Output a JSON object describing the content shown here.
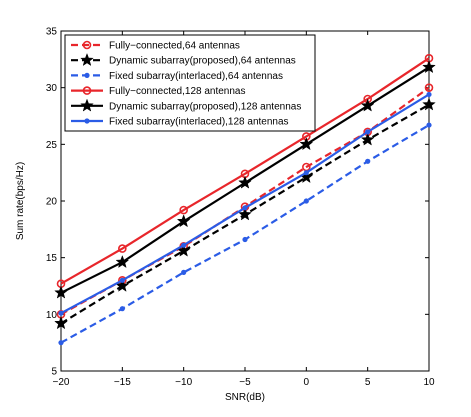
{
  "chart_data": {
    "type": "line",
    "xlabel": "SNR(dB)",
    "ylabel": "Sum rate(bps/Hz)",
    "xlim": [
      -20,
      10
    ],
    "ylim": [
      5,
      35
    ],
    "xticks": [
      -20,
      -15,
      -10,
      -5,
      0,
      5,
      10
    ],
    "yticks": [
      5,
      10,
      15,
      20,
      25,
      30,
      35
    ],
    "grid": false,
    "legend_position": "top-left",
    "x": [
      -20,
      -15,
      -10,
      -5,
      0,
      5,
      10
    ],
    "series": [
      {
        "name": "Fully−connected,64 antennas",
        "values": [
          10.0,
          13.0,
          16.0,
          19.5,
          23.0,
          26.1,
          30.0
        ],
        "color": "#e8262b",
        "dash": "dashed",
        "marker": "circle"
      },
      {
        "name": "Dynamic subarray(proposed),64 antennas",
        "values": [
          9.2,
          12.5,
          15.6,
          18.8,
          22.1,
          25.4,
          28.5
        ],
        "color": "#000000",
        "dash": "dashed",
        "marker": "star"
      },
      {
        "name": "Fixed subarray(interlaced),64 antennas",
        "values": [
          7.5,
          10.5,
          13.7,
          16.6,
          20.0,
          23.5,
          26.7
        ],
        "color": "#2b5ce6",
        "dash": "dashed",
        "marker": "dot"
      },
      {
        "name": "Fully−connected,128 antennas",
        "values": [
          12.7,
          15.8,
          19.2,
          22.4,
          25.7,
          29.0,
          32.6
        ],
        "color": "#e8262b",
        "dash": "solid",
        "marker": "circle"
      },
      {
        "name": "Dynamic subarray(proposed),128 antennas",
        "values": [
          11.9,
          14.6,
          18.2,
          21.6,
          25.0,
          28.4,
          31.8
        ],
        "color": "#000000",
        "dash": "solid",
        "marker": "star"
      },
      {
        "name": "Fixed subarray(interlaced),128 antennas",
        "values": [
          10.1,
          13.0,
          16.1,
          19.4,
          22.5,
          26.1,
          29.4
        ],
        "color": "#2b5ce6",
        "dash": "solid",
        "marker": "dot"
      }
    ]
  }
}
